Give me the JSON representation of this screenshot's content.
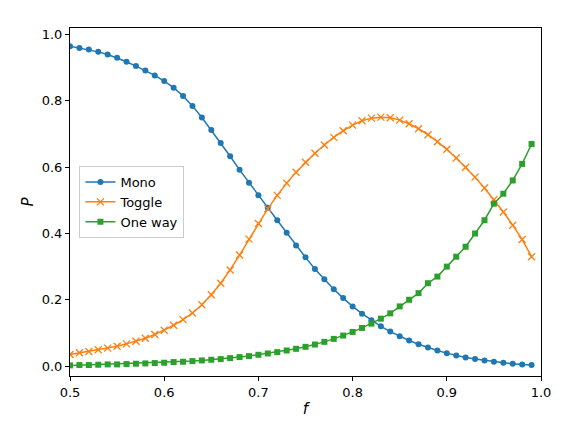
{
  "chart_data": {
    "type": "line",
    "x_label": "f",
    "y_label": "P",
    "x": [
      0.5,
      0.51,
      0.52,
      0.53,
      0.54,
      0.55,
      0.56,
      0.57,
      0.58,
      0.59,
      0.6,
      0.61,
      0.62,
      0.63,
      0.64,
      0.65,
      0.66,
      0.67,
      0.68,
      0.69,
      0.7,
      0.71,
      0.72,
      0.73,
      0.74,
      0.75,
      0.76,
      0.77,
      0.78,
      0.79,
      0.8,
      0.81,
      0.82,
      0.83,
      0.84,
      0.85,
      0.86,
      0.87,
      0.88,
      0.89,
      0.9,
      0.91,
      0.92,
      0.93,
      0.94,
      0.95,
      0.96,
      0.97,
      0.98,
      0.99
    ],
    "series": [
      {
        "name": "Mono",
        "color": "#1f77b4",
        "marker": "circle",
        "values": [
          0.965,
          0.96,
          0.955,
          0.948,
          0.94,
          0.93,
          0.918,
          0.905,
          0.892,
          0.877,
          0.86,
          0.84,
          0.815,
          0.785,
          0.75,
          0.712,
          0.673,
          0.633,
          0.592,
          0.553,
          0.515,
          0.478,
          0.44,
          0.402,
          0.364,
          0.328,
          0.293,
          0.262,
          0.232,
          0.205,
          0.18,
          0.158,
          0.138,
          0.12,
          0.104,
          0.09,
          0.077,
          0.066,
          0.056,
          0.047,
          0.039,
          0.032,
          0.026,
          0.021,
          0.017,
          0.013,
          0.01,
          0.007,
          0.005,
          0.003
        ]
      },
      {
        "name": "Toggle",
        "color": "#ff7f0e",
        "marker": "x",
        "values": [
          0.035,
          0.04,
          0.044,
          0.049,
          0.054,
          0.06,
          0.067,
          0.075,
          0.084,
          0.095,
          0.108,
          0.123,
          0.14,
          0.16,
          0.185,
          0.215,
          0.25,
          0.29,
          0.335,
          0.383,
          0.43,
          0.475,
          0.515,
          0.552,
          0.585,
          0.615,
          0.642,
          0.667,
          0.69,
          0.71,
          0.727,
          0.74,
          0.748,
          0.751,
          0.749,
          0.742,
          0.731,
          0.716,
          0.698,
          0.677,
          0.654,
          0.628,
          0.6,
          0.57,
          0.537,
          0.502,
          0.465,
          0.425,
          0.382,
          0.33
        ]
      },
      {
        "name": "One way",
        "color": "#2ca02c",
        "marker": "square",
        "values": [
          0.002,
          0.003,
          0.003,
          0.004,
          0.005,
          0.005,
          0.006,
          0.007,
          0.008,
          0.009,
          0.01,
          0.012,
          0.013,
          0.015,
          0.017,
          0.019,
          0.021,
          0.024,
          0.027,
          0.03,
          0.034,
          0.038,
          0.042,
          0.047,
          0.052,
          0.058,
          0.065,
          0.073,
          0.082,
          0.092,
          0.103,
          0.115,
          0.128,
          0.143,
          0.159,
          0.18,
          0.2,
          0.22,
          0.25,
          0.27,
          0.3,
          0.33,
          0.36,
          0.4,
          0.44,
          0.49,
          0.52,
          0.56,
          0.61,
          0.67
        ]
      }
    ],
    "xlim": [
      0.5,
      1.0
    ],
    "xticks": [
      0.5,
      0.6,
      0.7,
      0.8,
      0.9,
      {
        "value": 1.0,
        "label": "1.0"
      }
    ],
    "ylim": [
      -0.03,
      1.02
    ],
    "yticks": [
      {
        "value": 0,
        "label": "0.0"
      },
      0.2,
      0.4,
      0.6,
      0.8,
      {
        "value": 1.0,
        "label": "1.0"
      }
    ],
    "grid": false,
    "legend": "center left"
  }
}
